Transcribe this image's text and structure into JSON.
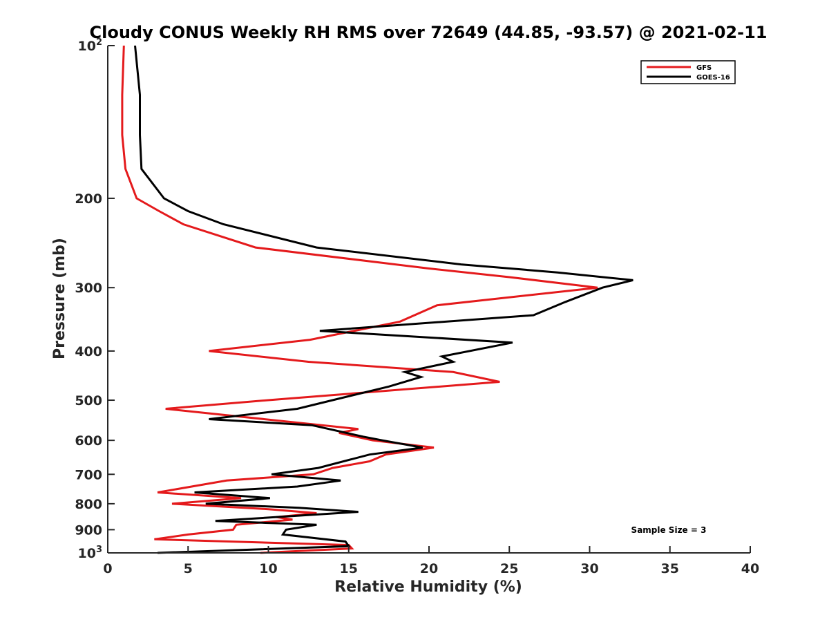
{
  "chart_data": {
    "type": "line",
    "title": "Cloudy CONUS Weekly RH RMS over 72649 (44.85, -93.57) @ 2021-02-11",
    "xlabel": "Relative Humidity (%)",
    "ylabel": "Pressure (mb)",
    "xlim": [
      0,
      40
    ],
    "ylim": [
      100,
      1000
    ],
    "y_scale": "log",
    "y_reversed": true,
    "grid": false,
    "legend_position": "top-right",
    "x_ticks": [
      "0",
      "5",
      "10",
      "15",
      "20",
      "25",
      "30",
      "35",
      "40"
    ],
    "y_ticks": [
      {
        "value": 100,
        "base": "10",
        "exp": "2"
      },
      {
        "value": 200,
        "label": "200"
      },
      {
        "value": 300,
        "label": "300"
      },
      {
        "value": 400,
        "label": "400"
      },
      {
        "value": 500,
        "label": "500"
      },
      {
        "value": 600,
        "label": "600"
      },
      {
        "value": 700,
        "label": "700"
      },
      {
        "value": 800,
        "label": "800"
      },
      {
        "value": 900,
        "label": "900"
      },
      {
        "value": 1000,
        "base": "10",
        "exp": "3"
      }
    ],
    "annotation": "Sample Size = 3",
    "series": [
      {
        "name": "GFS",
        "color": "#e41a1c",
        "points": [
          [
            1.0,
            100
          ],
          [
            0.9,
            125
          ],
          [
            0.9,
            150
          ],
          [
            1.1,
            175
          ],
          [
            1.8,
            200
          ],
          [
            3.2,
            212
          ],
          [
            4.7,
            225
          ],
          [
            9.2,
            250
          ],
          [
            20,
            275
          ],
          [
            25,
            286
          ],
          [
            30.5,
            300
          ],
          [
            20.5,
            325
          ],
          [
            18.2,
            350
          ],
          [
            12.6,
            380
          ],
          [
            6.3,
            400
          ],
          [
            12.5,
            420
          ],
          [
            21.5,
            440
          ],
          [
            24.4,
            460
          ],
          [
            10,
            500
          ],
          [
            3.6,
            520
          ],
          [
            15.6,
            570
          ],
          [
            14.4,
            580
          ],
          [
            16.5,
            600
          ],
          [
            20.3,
            620
          ],
          [
            17.3,
            640
          ],
          [
            16.3,
            660
          ],
          [
            14,
            680
          ],
          [
            12.8,
            700
          ],
          [
            7.4,
            720
          ],
          [
            3.1,
            760
          ],
          [
            8.3,
            780
          ],
          [
            4,
            800
          ],
          [
            10,
            820
          ],
          [
            13,
            835
          ],
          [
            10.5,
            850
          ],
          [
            11.5,
            860
          ],
          [
            8,
            880
          ],
          [
            7.8,
            900
          ],
          [
            5,
            920
          ],
          [
            2.9,
            940
          ],
          [
            15,
            965
          ],
          [
            15.2,
            980
          ],
          [
            9.5,
            1000
          ]
        ]
      },
      {
        "name": "GOES-16",
        "color": "#000000",
        "points": [
          [
            1.7,
            100
          ],
          [
            2,
            125
          ],
          [
            2,
            150
          ],
          [
            2.1,
            175
          ],
          [
            3.5,
            200
          ],
          [
            5,
            212
          ],
          [
            7.2,
            225
          ],
          [
            13,
            250
          ],
          [
            22,
            270
          ],
          [
            28,
            280
          ],
          [
            32.7,
            290
          ],
          [
            30.8,
            300
          ],
          [
            28.5,
            320
          ],
          [
            26.5,
            340
          ],
          [
            13.2,
            365
          ],
          [
            25.2,
            385
          ],
          [
            20.8,
            410
          ],
          [
            21.5,
            420
          ],
          [
            18.5,
            440
          ],
          [
            19.5,
            450
          ],
          [
            17.5,
            470
          ],
          [
            14,
            500
          ],
          [
            11.8,
            520
          ],
          [
            6.3,
            545
          ],
          [
            12.7,
            560
          ],
          [
            15.9,
            590
          ],
          [
            17.1,
            600
          ],
          [
            19.6,
            620
          ],
          [
            16.3,
            640
          ],
          [
            13.1,
            680
          ],
          [
            10.2,
            700
          ],
          [
            14.5,
            720
          ],
          [
            11.8,
            740
          ],
          [
            5.4,
            760
          ],
          [
            10.1,
            780
          ],
          [
            6.1,
            800
          ],
          [
            11.9,
            815
          ],
          [
            15.6,
            830
          ],
          [
            6.7,
            865
          ],
          [
            13,
            880
          ],
          [
            11.1,
            900
          ],
          [
            10.9,
            920
          ],
          [
            14.8,
            950
          ],
          [
            15,
            970
          ],
          [
            3.1,
            1000
          ]
        ]
      }
    ]
  }
}
